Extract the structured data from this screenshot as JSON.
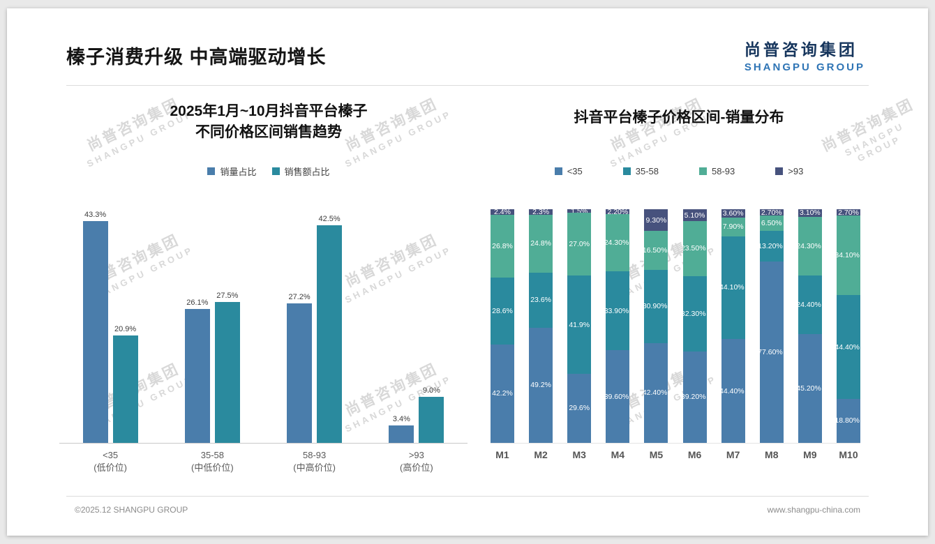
{
  "page": {
    "header": {
      "title": "榛子消费升级 中高端驱动增长"
    },
    "logo": {
      "cn": "尚普咨询集团",
      "en": "SHANGPU GROUP"
    },
    "watermark": {
      "cn": "尚普咨询集团",
      "en": "SHANGPU GROUP"
    },
    "footer": {
      "left": "©2025.12 SHANGPU GROUP",
      "right": "www.shangpu-china.com"
    }
  },
  "colors": {
    "series_blue": "#4a7dab",
    "series_teal": "#2a8a9e",
    "series_green": "#50ad96",
    "series_navy": "#47527d"
  },
  "chart_data": [
    {
      "type": "bar",
      "variant": "grouped",
      "title": "2025年1月~10月抖音平台榛子 不同价格区间销售趋势",
      "title_lines": [
        "2025年1月~10月抖音平台榛子",
        "不同价格区间销售趋势"
      ],
      "categories": [
        "<35",
        "35-58",
        "58-93",
        ">93"
      ],
      "category_sublabels": [
        "(低价位)",
        "(中低价位)",
        "(中高价位)",
        "(高价位)"
      ],
      "unit": "%",
      "ylim": [
        0,
        45
      ],
      "grid": false,
      "legend_position": "top",
      "series": [
        {
          "name": "销量占比",
          "color": "#4a7dab",
          "values": [
            43.3,
            26.1,
            27.2,
            3.4
          ],
          "labels": [
            "43.3%",
            "26.1%",
            "27.2%",
            "3.4%"
          ]
        },
        {
          "name": "销售额占比",
          "color": "#2a8a9e",
          "values": [
            20.9,
            27.5,
            42.5,
            9.0
          ],
          "labels": [
            "20.9%",
            "27.5%",
            "42.5%",
            "9.0%"
          ]
        }
      ]
    },
    {
      "type": "bar",
      "variant": "stacked-100",
      "title": "抖音平台榛子价格区间-销量分布",
      "categories": [
        "M1",
        "M2",
        "M3",
        "M4",
        "M5",
        "M6",
        "M7",
        "M8",
        "M9",
        "M10"
      ],
      "unit": "%",
      "ylim": [
        0,
        100
      ],
      "grid": false,
      "legend_position": "top",
      "series": [
        {
          "name": "<35",
          "color": "#4a7dab",
          "values": [
            42.2,
            49.2,
            29.6,
            39.6,
            42.4,
            39.2,
            44.4,
            77.6,
            45.2,
            18.8
          ],
          "labels": [
            "42.2%",
            "49.2%",
            "29.6%",
            "39.60%",
            "42.40%",
            "39.20%",
            "44.40%",
            "77.60%",
            "45.20%",
            "18.80%"
          ]
        },
        {
          "name": "35-58",
          "color": "#2a8a9e",
          "values": [
            28.6,
            23.6,
            41.9,
            33.9,
            30.9,
            32.3,
            44.1,
            13.2,
            24.4,
            44.4
          ],
          "labels": [
            "28.6%",
            "23.6%",
            "41.9%",
            "33.90%",
            "30.90%",
            "32.30%",
            "44.10%",
            "13.20%",
            "24.40%",
            "44.40%"
          ]
        },
        {
          "name": "58-93",
          "color": "#50ad96",
          "values": [
            26.8,
            24.8,
            27.0,
            24.3,
            16.5,
            23.5,
            7.9,
            6.5,
            24.3,
            34.1
          ],
          "labels": [
            "26.8%",
            "24.8%",
            "27.0%",
            "24.30%",
            "16.50%",
            "23.50%",
            "7.90%",
            "6.50%",
            "24.30%",
            "34.10%"
          ]
        },
        {
          "name": ">93",
          "color": "#47527d",
          "values": [
            2.4,
            2.3,
            1.5,
            2.2,
            9.3,
            5.1,
            3.6,
            2.7,
            3.1,
            2.7
          ],
          "labels": [
            "2.4%",
            "2.3%",
            "1.5%",
            "2.20%",
            "9.30%",
            "5.10%",
            "3.60%",
            "2.70%",
            "3.10%",
            "2.70%"
          ]
        }
      ]
    }
  ]
}
